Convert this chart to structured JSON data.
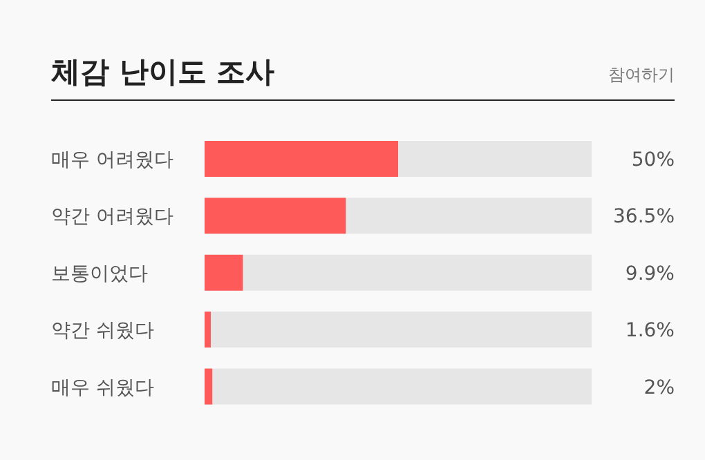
{
  "chart_data": {
    "type": "bar",
    "orientation": "horizontal",
    "title": "체감 난이도 조사",
    "annotations": [
      "참여하기"
    ],
    "categories": [
      "매우 어려웠다",
      "약간 어려웠다",
      "보통이었다",
      "약간 쉬웠다",
      "매우 쉬웠다"
    ],
    "values": [
      50,
      36.5,
      9.9,
      1.6,
      2
    ],
    "value_labels": [
      "50%",
      "36.5%",
      "9.9%",
      "1.6%",
      "2%"
    ],
    "color": "#ff5a5a",
    "xlim": [
      0,
      100
    ]
  }
}
